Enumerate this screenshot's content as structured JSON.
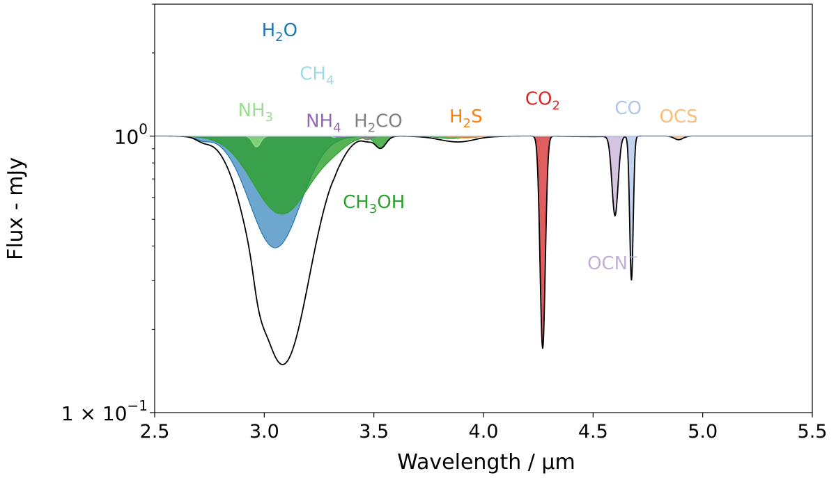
{
  "chart_data": {
    "type": "area",
    "xlabel": "Wavelength / μm",
    "ylabel": "Flux - mJy",
    "xlim": [
      2.5,
      5.5
    ],
    "ylim": [
      0.1,
      3.0
    ],
    "yscale": "log",
    "xticks": [
      2.5,
      3.0,
      3.5,
      4.0,
      4.5,
      5.0,
      5.5
    ],
    "xtick_labels": [
      "2.5",
      "3.0",
      "3.5",
      "4.0",
      "4.5",
      "5.0",
      "5.5"
    ],
    "yticks": [
      {
        "value": 1.0,
        "base": "10",
        "exp": "0"
      },
      {
        "value": 0.1,
        "base": "1 × 10",
        "exp": "−1"
      }
    ],
    "grid": false,
    "continuum": 1.0,
    "series": [
      {
        "id": "H2O",
        "color": "#1f77b4",
        "minima": [
          {
            "x": 3.05,
            "y": 0.4
          },
          {
            "x": 4.5,
            "y": 0.995
          }
        ]
      },
      {
        "id": "CH3OH",
        "color": "#2ca02c",
        "minima": [
          {
            "x": 3.08,
            "y": 0.52
          },
          {
            "x": 3.32,
            "y": 0.9
          },
          {
            "x": 3.53,
            "y": 0.84
          }
        ]
      },
      {
        "id": "NH3",
        "color": "#98df8a",
        "minima": [
          {
            "x": 2.96,
            "y": 0.91
          }
        ]
      },
      {
        "id": "CH4",
        "color": "#9edae5",
        "minima": [
          {
            "x": 3.32,
            "y": 0.99
          }
        ]
      },
      {
        "id": "NH4",
        "color": "#9467bd",
        "minima": [
          {
            "x": 3.35,
            "y": 0.99
          }
        ]
      },
      {
        "id": "H2CO",
        "color": "#7f7f7f",
        "minima": [
          {
            "x": 3.47,
            "y": 0.97
          }
        ]
      },
      {
        "id": "H2S",
        "color": "#ff7f0e",
        "minima": [
          {
            "x": 3.92,
            "y": 0.985
          }
        ]
      },
      {
        "id": "CO2",
        "color": "#d62728",
        "minima": [
          {
            "x": 4.27,
            "y": 0.17
          }
        ]
      },
      {
        "id": "OCN-",
        "color": "#c5b0d5",
        "minima": [
          {
            "x": 4.6,
            "y": 0.52
          }
        ]
      },
      {
        "id": "CO",
        "color": "#aec7e8",
        "minima": [
          {
            "x": 4.675,
            "y": 0.3
          }
        ]
      },
      {
        "id": "OCS",
        "color": "#ffbb78",
        "minima": [
          {
            "x": 4.89,
            "y": 0.97
          }
        ]
      },
      {
        "id": "total",
        "color": "#000000",
        "minima": [
          {
            "x": 3.07,
            "y": 0.185
          },
          {
            "x": 4.27,
            "y": 0.17
          },
          {
            "x": 4.6,
            "y": 0.52
          },
          {
            "x": 4.675,
            "y": 0.3
          }
        ]
      }
    ],
    "labels": {
      "H2O": {
        "main": "H",
        "sub": "2",
        "tail": "O"
      },
      "CH4": {
        "main": "CH",
        "sub": "4",
        "tail": ""
      },
      "NH3": {
        "main": "NH",
        "sub": "3",
        "tail": ""
      },
      "NH4": {
        "main": "NH",
        "sub": "4",
        "tail": ""
      },
      "H2CO": {
        "main": "H",
        "sub": "2",
        "tail": "CO"
      },
      "H2S": {
        "main": "H",
        "sub": "2",
        "tail": "S"
      },
      "CO2": {
        "main": "CO",
        "sub": "2",
        "tail": ""
      },
      "CO": {
        "main": "CO",
        "sub": "",
        "tail": ""
      },
      "OCS": {
        "main": "OCS",
        "sub": "",
        "tail": ""
      },
      "CH3OH": {
        "main": "CH",
        "sub": "3",
        "tail": "OH"
      },
      "OCN-": {
        "main": "OCN",
        "sup": "−"
      }
    }
  }
}
